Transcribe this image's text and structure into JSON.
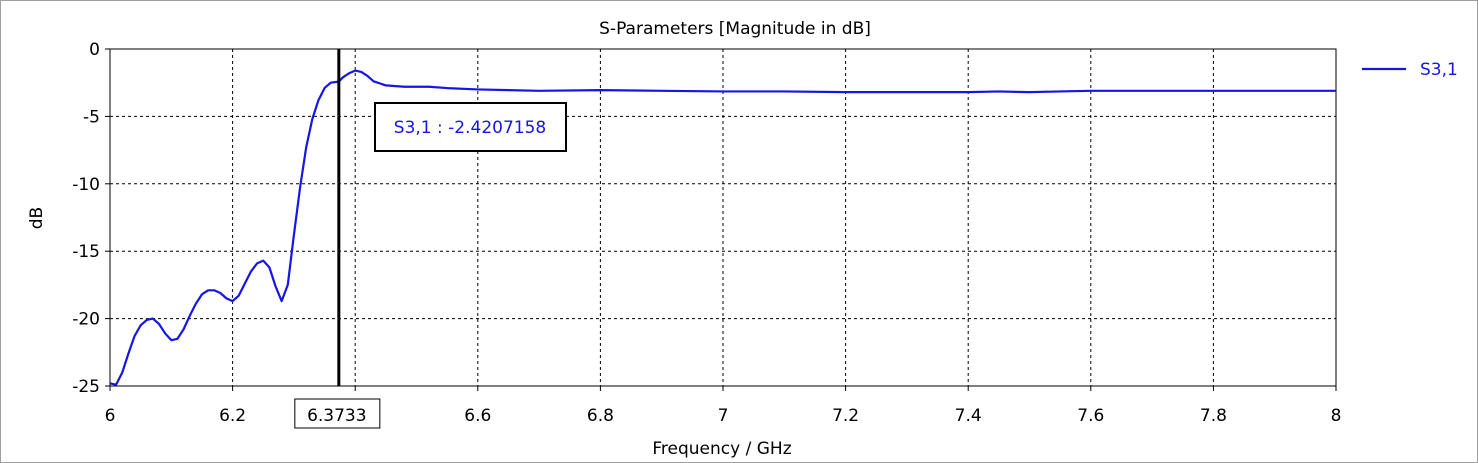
{
  "colors": {
    "series": "#1515e6",
    "grid": "#000000",
    "marker": "#000000"
  },
  "chart_data": {
    "type": "line",
    "title": "S-Parameters [Magnitude in dB]",
    "xlabel": "Frequency / GHz",
    "ylabel": "dB",
    "xlim": [
      6,
      8
    ],
    "ylim": [
      -25,
      0
    ],
    "grid": true,
    "legend_position": "right",
    "x_ticks": [
      "6",
      "6.2",
      "6.4",
      "6.6",
      "6.8",
      "7",
      "7.2",
      "7.4",
      "7.6",
      "7.8",
      "8"
    ],
    "y_ticks": [
      "0",
      "-5",
      "-10",
      "-15",
      "-20",
      "-25"
    ],
    "series": [
      {
        "name": "S3,1",
        "points": [
          [
            6.0,
            -24.8
          ],
          [
            6.01,
            -24.9
          ],
          [
            6.02,
            -24.0
          ],
          [
            6.03,
            -22.6
          ],
          [
            6.04,
            -21.3
          ],
          [
            6.05,
            -20.5
          ],
          [
            6.06,
            -20.1
          ],
          [
            6.07,
            -20.0
          ],
          [
            6.08,
            -20.4
          ],
          [
            6.09,
            -21.1
          ],
          [
            6.1,
            -21.6
          ],
          [
            6.11,
            -21.5
          ],
          [
            6.12,
            -20.8
          ],
          [
            6.13,
            -19.8
          ],
          [
            6.14,
            -18.9
          ],
          [
            6.15,
            -18.2
          ],
          [
            6.16,
            -17.9
          ],
          [
            6.17,
            -17.9
          ],
          [
            6.18,
            -18.1
          ],
          [
            6.19,
            -18.5
          ],
          [
            6.2,
            -18.7
          ],
          [
            6.21,
            -18.3
          ],
          [
            6.22,
            -17.4
          ],
          [
            6.23,
            -16.5
          ],
          [
            6.24,
            -15.9
          ],
          [
            6.25,
            -15.7
          ],
          [
            6.26,
            -16.2
          ],
          [
            6.27,
            -17.6
          ],
          [
            6.28,
            -18.7
          ],
          [
            6.29,
            -17.5
          ],
          [
            6.3,
            -13.8
          ],
          [
            6.31,
            -10.3
          ],
          [
            6.32,
            -7.3
          ],
          [
            6.33,
            -5.2
          ],
          [
            6.34,
            -3.8
          ],
          [
            6.35,
            -2.9
          ],
          [
            6.36,
            -2.5
          ],
          [
            6.3733,
            -2.4207158
          ],
          [
            6.38,
            -2.1
          ],
          [
            6.39,
            -1.8
          ],
          [
            6.4,
            -1.6
          ],
          [
            6.41,
            -1.7
          ],
          [
            6.42,
            -2.0
          ],
          [
            6.43,
            -2.4
          ],
          [
            6.45,
            -2.7
          ],
          [
            6.48,
            -2.8
          ],
          [
            6.52,
            -2.8
          ],
          [
            6.55,
            -2.9
          ],
          [
            6.6,
            -3.0
          ],
          [
            6.7,
            -3.1
          ],
          [
            6.8,
            -3.05
          ],
          [
            6.9,
            -3.1
          ],
          [
            7.0,
            -3.15
          ],
          [
            7.1,
            -3.15
          ],
          [
            7.2,
            -3.2
          ],
          [
            7.3,
            -3.2
          ],
          [
            7.4,
            -3.2
          ],
          [
            7.45,
            -3.15
          ],
          [
            7.5,
            -3.2
          ],
          [
            7.55,
            -3.15
          ],
          [
            7.6,
            -3.1
          ],
          [
            7.7,
            -3.1
          ],
          [
            7.8,
            -3.1
          ],
          [
            7.9,
            -3.1
          ],
          [
            8.0,
            -3.1
          ]
        ]
      }
    ],
    "marker": {
      "x": 6.3733,
      "x_label": "6.3733",
      "readout": "S3,1 : -2.4207158"
    }
  }
}
